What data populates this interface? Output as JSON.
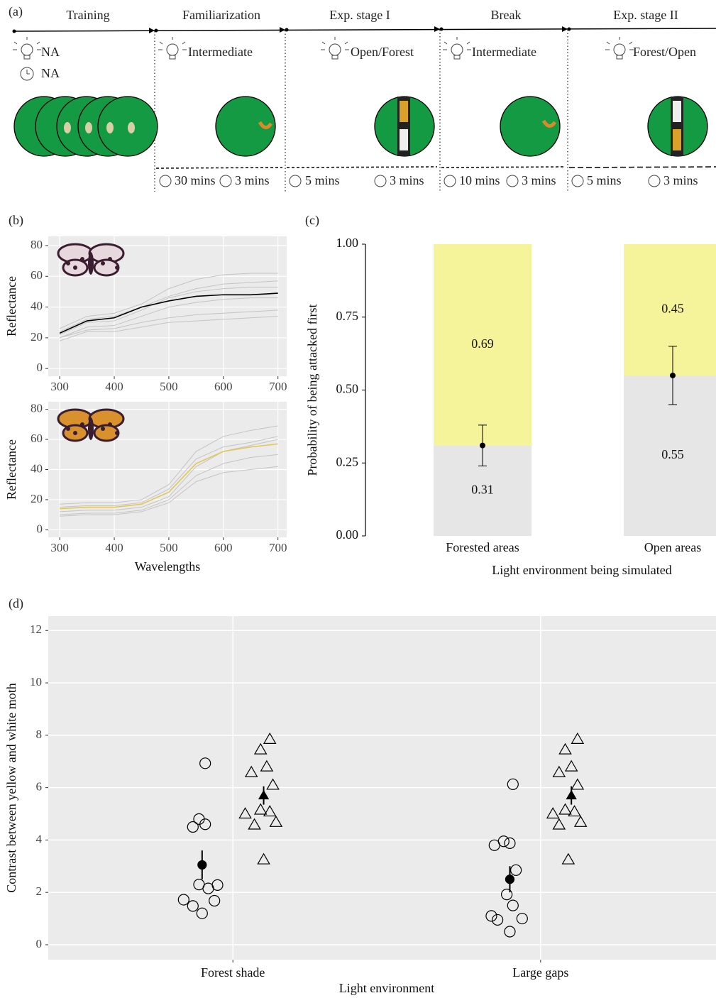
{
  "panels": [
    "(a)",
    "(b)",
    "(c)",
    "(d)"
  ],
  "timeline": {
    "stages": [
      {
        "title": "Training",
        "light": "NA",
        "timer": "NA"
      },
      {
        "title": "Familiarization",
        "light": "Intermediate",
        "durations": [
          "30 mins",
          "3 mins"
        ]
      },
      {
        "title": "Exp. stage I",
        "light": "Open/Forest",
        "durations": [
          "5 mins",
          "3 mins"
        ]
      },
      {
        "title": "Break",
        "light": "Intermediate",
        "durations": [
          "10 mins",
          "3 mins"
        ]
      },
      {
        "title": "Exp. stage II",
        "light": "Forest/Open",
        "durations": [
          "5 mins",
          "3 mins"
        ]
      }
    ]
  },
  "chart_data": [
    {
      "type": "line",
      "x": [
        300,
        350,
        400,
        450,
        500,
        550,
        600,
        650,
        700
      ],
      "series": [
        {
          "color": "#c4c4c4",
          "values": [
            26,
            34,
            36,
            42,
            52,
            58,
            61,
            62,
            62
          ]
        },
        {
          "color": "#c4c4c4",
          "values": [
            22,
            30,
            31,
            38,
            46,
            50,
            52,
            53,
            53
          ]
        },
        {
          "color": "#c4c4c4",
          "values": [
            20,
            27,
            28,
            34,
            40,
            43,
            45,
            46,
            46
          ]
        },
        {
          "color": "#c4c4c4",
          "values": [
            24,
            32,
            34,
            40,
            47,
            52,
            55,
            56,
            57
          ]
        },
        {
          "color": "#c4c4c4",
          "values": [
            18,
            24,
            24,
            27,
            30,
            31,
            32,
            33,
            34
          ]
        },
        {
          "color": "#c4c4c4",
          "values": [
            20,
            25,
            26,
            30,
            33,
            35,
            36,
            37,
            38
          ]
        },
        {
          "color": "#000000",
          "values": [
            23,
            31,
            33,
            40,
            44,
            47,
            48,
            48,
            49
          ]
        }
      ],
      "xlim": [
        279,
        716
      ],
      "ylim": [
        -5,
        86
      ],
      "xticks": [
        300,
        400,
        500,
        600,
        700
      ],
      "yticks": [
        0,
        20,
        40,
        60,
        80
      ],
      "ylabel": "Reflectance",
      "grid": true
    },
    {
      "type": "line",
      "x": [
        300,
        350,
        400,
        450,
        500,
        550,
        600,
        650,
        700
      ],
      "series": [
        {
          "color": "#c4c4c4",
          "values": [
            17,
            18,
            18,
            20,
            30,
            52,
            62,
            66,
            69
          ]
        },
        {
          "color": "#c4c4c4",
          "values": [
            12,
            13,
            13,
            15,
            22,
            42,
            52,
            56,
            60
          ]
        },
        {
          "color": "#c4c4c4",
          "values": [
            10,
            11,
            11,
            13,
            20,
            36,
            44,
            48,
            50
          ]
        },
        {
          "color": "#c4c4c4",
          "values": [
            15,
            16,
            16,
            18,
            27,
            47,
            55,
            58,
            62
          ]
        },
        {
          "color": "#c4c4c4",
          "values": [
            9,
            10,
            10,
            12,
            18,
            32,
            38,
            40,
            42
          ]
        },
        {
          "color": "#e2c85a",
          "values": [
            14,
            15,
            15,
            17,
            25,
            44,
            52,
            55,
            57
          ]
        }
      ],
      "xlim": [
        279,
        716
      ],
      "ylim": [
        -5,
        85
      ],
      "xticks": [
        300,
        400,
        500,
        600,
        700
      ],
      "yticks": [
        0,
        20,
        40,
        60,
        80
      ],
      "ylabel": "Reflectance",
      "xlabel": "Wavelengths",
      "grid": true
    },
    {
      "type": "stacked_bar",
      "categories": [
        "Forested areas",
        "Open areas"
      ],
      "series": [
        {
          "color": "#e6e6e6",
          "values": [
            0.31,
            0.55
          ]
        },
        {
          "color": "#f6f49a",
          "values": [
            0.69,
            0.45
          ]
        }
      ],
      "points": {
        "values": [
          0.31,
          0.55
        ],
        "errors": [
          0.07,
          0.1
        ]
      },
      "ylim": [
        0,
        1
      ],
      "yticks": [
        {
          "value": 0,
          "label": "0.00"
        },
        {
          "value": 0.25,
          "label": "0.25"
        },
        {
          "value": 0.5,
          "label": "0.50"
        },
        {
          "value": 0.75,
          "label": "0.75"
        },
        {
          "value": 1,
          "label": "1.00"
        }
      ],
      "ylabel": "Probability of being attacked first",
      "xlabel": "Light environment being simulated"
    },
    {
      "type": "scatter",
      "series": [
        {
          "marker": "circle",
          "filled": false,
          "color": "#000000",
          "x": [
            0.91,
            0.89,
            0.91,
            0.87,
            0.89,
            0.95,
            0.92,
            0.84,
            0.94,
            0.87,
            0.9,
            1.91,
            1.88,
            1.9,
            1.85,
            1.92,
            1.89,
            1.91,
            1.84,
            1.86,
            1.94,
            1.9
          ],
          "values": [
            6.93,
            4.8,
            4.6,
            4.5,
            2.3,
            2.28,
            2.15,
            1.72,
            1.68,
            1.48,
            1.2,
            6.13,
            3.95,
            3.88,
            3.8,
            2.85,
            1.92,
            1.5,
            1.1,
            0.95,
            1.0,
            0.5
          ]
        },
        {
          "marker": "triangle",
          "filled": false,
          "color": "#000000",
          "x": [
            1.12,
            1.09,
            1.11,
            1.06,
            1.13,
            1.04,
            1.09,
            1.12,
            1.14,
            1.07,
            1.1,
            2.12,
            2.08,
            2.1,
            2.06,
            2.12,
            2.04,
            2.08,
            2.11,
            2.13,
            2.06,
            2.09
          ],
          "values": [
            7.85,
            7.45,
            6.8,
            6.58,
            6.1,
            5.0,
            5.15,
            5.08,
            4.68,
            4.58,
            3.25,
            7.85,
            7.45,
            6.8,
            6.58,
            6.1,
            5.0,
            5.15,
            5.08,
            4.68,
            4.58,
            3.25
          ]
        },
        {
          "marker": "circle",
          "filled": true,
          "color": "#000000",
          "x": [
            0.9,
            1.9
          ],
          "values": [
            3.05,
            2.5
          ],
          "errors": [
            0.55,
            0.5
          ]
        },
        {
          "marker": "triangle",
          "filled": true,
          "color": "#000000",
          "x": [
            1.1,
            2.1
          ],
          "values": [
            5.7,
            5.7
          ],
          "errors": [
            0.35,
            0.35
          ]
        }
      ],
      "xlim": [
        0.4,
        2.57
      ],
      "ylim": [
        -0.57,
        12.55
      ],
      "xticks": [
        {
          "value": 1,
          "label": "Forest shade"
        },
        {
          "value": 2,
          "label": "Large gaps"
        }
      ],
      "yticks": [
        0,
        2,
        4,
        6,
        8,
        10,
        12
      ],
      "xlabel": "Light environment",
      "ylabel": "Contrast between yellow and white moth",
      "grid": true
    }
  ]
}
